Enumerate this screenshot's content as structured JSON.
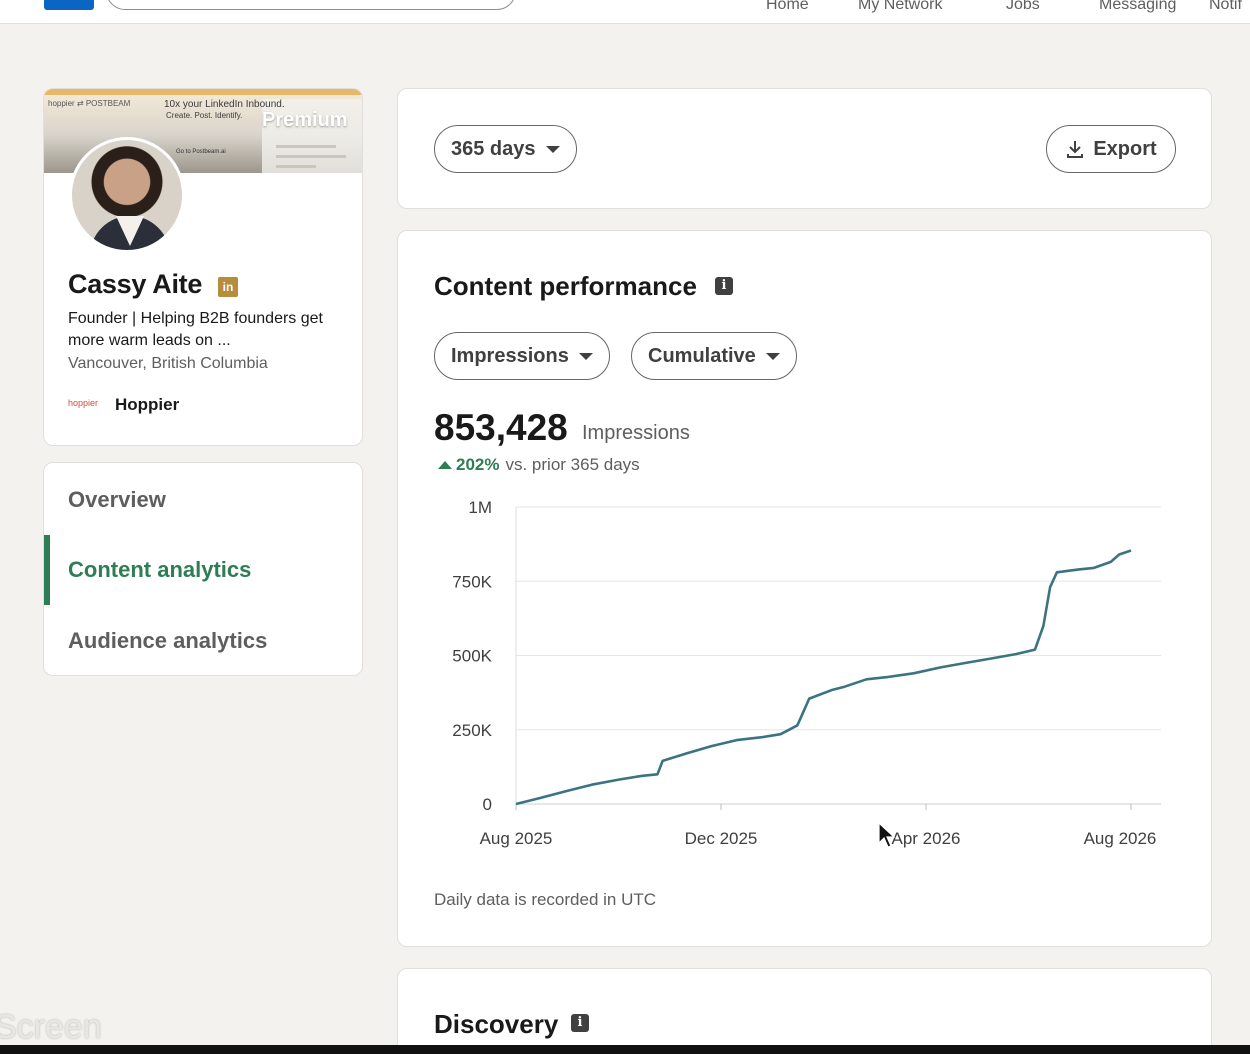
{
  "topnav": {
    "items": [
      "Home",
      "My Network",
      "Jobs",
      "Messaging",
      "Notif"
    ]
  },
  "profile": {
    "banner": {
      "brand_text": "hoppier ⇄ POSTBEAM",
      "tagline": "10x your LinkedIn Inbound.",
      "subline": "Create. Post. Identify.",
      "cta": "Go to Postbeam.ai",
      "premium_label": "Premium"
    },
    "name": "Cassy Aite",
    "badge": "in",
    "headline": "Founder | Helping B2B founders get more warm leads on ...",
    "location": "Vancouver, British Columbia",
    "company_logo_text": "hoppier",
    "company": "Hoppier"
  },
  "sidenav": {
    "items": [
      {
        "label": "Overview",
        "active": false
      },
      {
        "label": "Content analytics",
        "active": true
      },
      {
        "label": "Audience analytics",
        "active": false
      }
    ]
  },
  "filters": {
    "range": "365 days",
    "export_label": "Export"
  },
  "performance": {
    "title": "Content performance",
    "metric_dropdown": "Impressions",
    "mode_dropdown": "Cumulative",
    "total": "853,428",
    "total_unit": "Impressions",
    "change_pct": "202%",
    "change_text": "vs. prior 365 days",
    "footnote": "Daily data is recorded in UTC"
  },
  "discovery": {
    "title": "Discovery"
  },
  "watermark": "Screen",
  "colors": {
    "accent_green": "#2f7d55",
    "line": "#3b7480",
    "linkedin_blue": "#0a66c2"
  },
  "chart_data": {
    "type": "line",
    "x_ticks": [
      "Aug 2025",
      "Dec 2025",
      "Apr 2026",
      "Aug 2026"
    ],
    "y_ticks": [
      "0",
      "250K",
      "500K",
      "750K",
      "1M"
    ],
    "ylim": [
      0,
      1000000
    ],
    "grid": true,
    "series": [
      {
        "x": [
          "2025-08-01",
          "2025-08-15",
          "2025-09-01",
          "2025-09-15",
          "2025-10-01",
          "2025-10-15",
          "2025-10-24",
          "2025-10-27",
          "2025-11-10",
          "2025-11-25",
          "2025-12-10",
          "2025-12-25",
          "2026-01-05",
          "2026-01-10",
          "2026-01-15",
          "2026-01-22",
          "2026-02-05",
          "2026-02-12",
          "2026-02-25",
          "2026-03-10",
          "2026-03-25",
          "2026-04-10",
          "2026-04-25",
          "2026-05-10",
          "2026-05-25",
          "2026-06-05",
          "2026-06-10",
          "2026-06-14",
          "2026-06-18",
          "2026-07-01",
          "2026-07-10",
          "2026-07-20",
          "2026-07-25",
          "2026-08-01"
        ],
        "values": [
          0,
          20000,
          45000,
          65000,
          82000,
          95000,
          100000,
          145000,
          170000,
          195000,
          215000,
          225000,
          235000,
          250000,
          265000,
          355000,
          385000,
          395000,
          420000,
          428000,
          440000,
          460000,
          475000,
          490000,
          505000,
          520000,
          600000,
          730000,
          780000,
          790000,
          795000,
          815000,
          840000,
          853428
        ]
      }
    ]
  }
}
